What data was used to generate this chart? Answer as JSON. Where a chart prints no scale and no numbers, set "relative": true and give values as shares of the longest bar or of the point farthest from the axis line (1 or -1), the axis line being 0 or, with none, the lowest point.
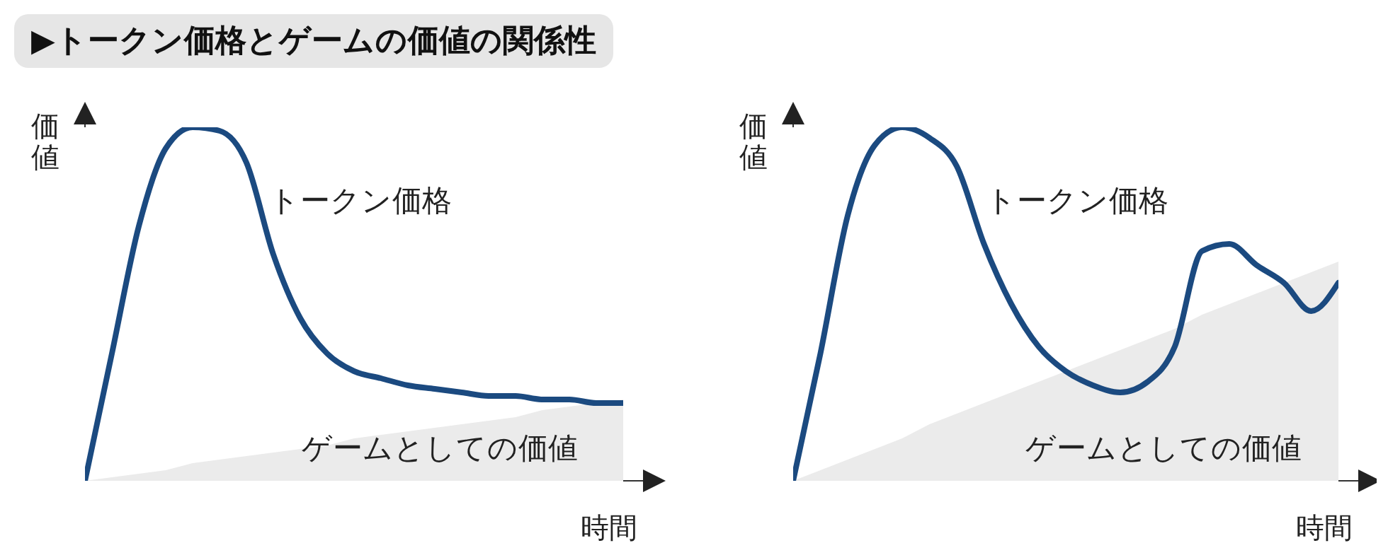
{
  "chart_data": [
    {
      "type": "line",
      "title": "▶トークン価格とゲームの価値の関係性",
      "relative": true,
      "xlabel": "時間",
      "ylabel": "価値",
      "categories": [
        null,
        null,
        null,
        null,
        null,
        null,
        null,
        null,
        null,
        null,
        null,
        null,
        null,
        null,
        null,
        null,
        null,
        null,
        null,
        null,
        null
      ],
      "series": [
        {
          "name": "ゲームとしての価値",
          "type": "area",
          "color": "#ebebeb",
          "values": [
            0,
            0.01,
            0.02,
            0.03,
            0.05,
            0.06,
            0.07,
            0.08,
            0.09,
            0.1,
            0.12,
            0.13,
            0.14,
            0.15,
            0.16,
            0.17,
            0.18,
            0.2,
            0.21,
            0.22,
            0.23
          ]
        },
        {
          "name": "トークン価格",
          "type": "line",
          "color": "#1b4a80",
          "values": [
            0,
            0.36,
            0.72,
            0.94,
            1,
            0.99,
            0.9,
            0.64,
            0.46,
            0.36,
            0.31,
            0.29,
            0.27,
            0.26,
            0.25,
            0.24,
            0.24,
            0.23,
            0.23,
            0.22,
            0.22
          ]
        }
      ]
    },
    {
      "type": "line",
      "relative": true,
      "xlabel": "時間",
      "ylabel": "価値",
      "categories": [
        null,
        null,
        null,
        null,
        null,
        null,
        null,
        null,
        null,
        null,
        null,
        null,
        null,
        null,
        null,
        null,
        null,
        null,
        null,
        null,
        null
      ],
      "series": [
        {
          "name": "ゲームとしての価値",
          "type": "area",
          "color": "#ebebeb",
          "values": [
            0,
            0.03,
            0.06,
            0.09,
            0.12,
            0.16,
            0.19,
            0.22,
            0.25,
            0.28,
            0.31,
            0.34,
            0.37,
            0.4,
            0.43,
            0.47,
            0.5,
            0.53,
            0.56,
            0.59,
            0.62
          ]
        },
        {
          "name": "トークン価格",
          "type": "line",
          "color": "#1b4a80",
          "values": [
            0,
            0.36,
            0.75,
            0.95,
            1,
            0.97,
            0.89,
            0.67,
            0.5,
            0.38,
            0.31,
            0.27,
            0.25,
            0.28,
            0.38,
            0.65,
            0.67,
            0.61,
            0.56,
            0.48,
            0.56
          ]
        }
      ]
    }
  ]
}
